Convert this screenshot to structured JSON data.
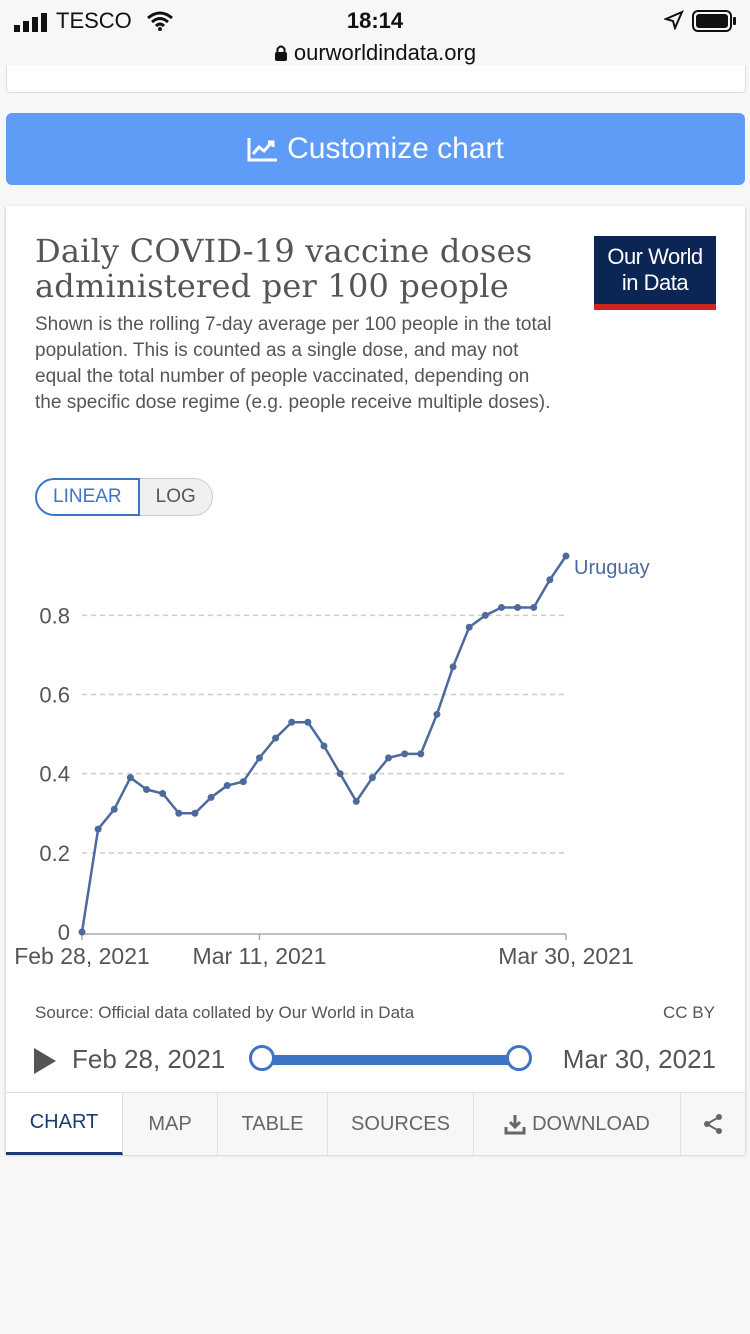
{
  "statusbar": {
    "carrier": "TESCO",
    "time": "18:14",
    "url": "ourworldindata.org"
  },
  "customize": {
    "label": "Customize chart",
    "icon": "line-chart-icon"
  },
  "card": {
    "title": "Daily COVID-19 vaccine doses administered per 100 people",
    "subtitle": "Shown is the rolling 7-day average per 100 people in the total population. This is counted as a single dose, and may not equal the total number of people vaccinated, depending on the specific dose regime (e.g. people receive multiple doses).",
    "logo_line1": "Our World",
    "logo_line2": "in Data",
    "toggle": {
      "linear": "LINEAR",
      "log": "LOG",
      "selected": "LINEAR"
    },
    "source": "Source: Official data collated by Our World in Data",
    "license": "CC BY",
    "timeline": {
      "start": "Feb 28, 2021",
      "end": "Mar 30, 2021",
      "range_selected": [
        0,
        1
      ]
    },
    "tabs": [
      "CHART",
      "MAP",
      "TABLE",
      "SOURCES",
      "DOWNLOAD"
    ],
    "active_tab": "CHART",
    "share_icon": "share-icon"
  },
  "chart_data": {
    "type": "line",
    "title": "Daily COVID-19 vaccine doses administered per 100 people",
    "x_tick_labels": [
      "Feb 28, 2021",
      "Mar 11, 2021",
      "Mar 30, 2021"
    ],
    "x_tick_dates": [
      "2021-02-28",
      "2021-03-11",
      "2021-03-30"
    ],
    "y_ticks": [
      0,
      0.2,
      0.4,
      0.6,
      0.8
    ],
    "y_tick_labels": [
      "0",
      "0.2",
      "0.4",
      "0.6",
      "0.8"
    ],
    "ylim": [
      0,
      0.95
    ],
    "xlim": [
      "2021-02-28",
      "2021-03-30"
    ],
    "grid": "horizontal-dashed",
    "color": "#4c6a9c",
    "series": [
      {
        "name": "Uruguay",
        "x": [
          "2021-02-28",
          "2021-03-01",
          "2021-03-02",
          "2021-03-03",
          "2021-03-04",
          "2021-03-05",
          "2021-03-06",
          "2021-03-07",
          "2021-03-08",
          "2021-03-09",
          "2021-03-10",
          "2021-03-11",
          "2021-03-12",
          "2021-03-13",
          "2021-03-14",
          "2021-03-15",
          "2021-03-16",
          "2021-03-17",
          "2021-03-18",
          "2021-03-19",
          "2021-03-20",
          "2021-03-21",
          "2021-03-22",
          "2021-03-23",
          "2021-03-24",
          "2021-03-25",
          "2021-03-26",
          "2021-03-27",
          "2021-03-28",
          "2021-03-29",
          "2021-03-30"
        ],
        "values": [
          0,
          0.26,
          0.31,
          0.39,
          0.36,
          0.35,
          0.3,
          0.3,
          0.34,
          0.37,
          0.38,
          0.44,
          0.49,
          0.53,
          0.53,
          0.47,
          0.4,
          0.33,
          0.39,
          0.44,
          0.45,
          0.45,
          0.55,
          0.67,
          0.77,
          0.8,
          0.82,
          0.82,
          0.82,
          0.89,
          0.95
        ]
      }
    ]
  }
}
